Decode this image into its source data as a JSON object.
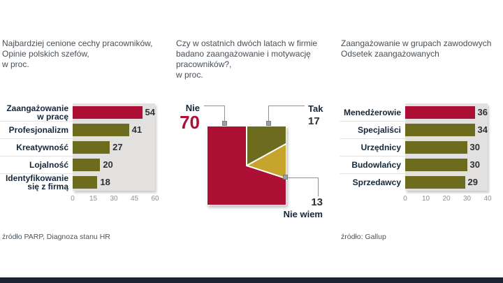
{
  "colors": {
    "red": "#ae1035",
    "olive": "#6d6b1d",
    "gold": "#c6a32b",
    "panel": "#e2e1e0",
    "label": "#14273a",
    "value": "#303030",
    "axis": "#8f8f8f",
    "header": "#474f57",
    "source": "#4c545c",
    "line": "#8d9297",
    "marker": "#9aa0a5",
    "footer_bar": "#1b2531"
  },
  "panels": {
    "left": {
      "title_lines": [
        "Najbardziej cenione cechy pracowników,",
        "Opinie polskich szefów,",
        "w proc."
      ],
      "max": 60,
      "ticks": [
        "0",
        "15",
        "30",
        "45",
        "60"
      ],
      "rows": [
        {
          "line1": "Zaangażowanie",
          "line2": "w pracę",
          "value": 54,
          "color": "#ae1035"
        },
        {
          "line1": "Profesjonalizm",
          "value": 41,
          "color": "#6d6b1d"
        },
        {
          "line1": "Kreatywność",
          "value": 27,
          "color": "#6d6b1d"
        },
        {
          "line1": "Lojalność",
          "value": 20,
          "color": "#6d6b1d"
        },
        {
          "line1": "Identyfikowanie",
          "line2": "się z firmą",
          "value": 18,
          "color": "#6d6b1d"
        }
      ],
      "source": "źródło PARP, Diagnoza stanu HR"
    },
    "middle": {
      "title_lines": [
        "Czy w ostatnich dwóch latach w firmie",
        "badano zaangażowanie i motywację",
        "pracowników?,",
        "w proc."
      ],
      "slices": [
        {
          "label": "Tak",
          "value": 17,
          "color": "#6d6b1d"
        },
        {
          "label": "Nie wiem",
          "value": 13,
          "color": "#c6a32b"
        },
        {
          "label": "Nie",
          "value": 70,
          "color": "#ae1035"
        }
      ],
      "labels": {
        "nie": "Nie",
        "nie_value": 70,
        "tak": "Tak",
        "tak_value": 17,
        "niewiem": "Nie wiem",
        "niewiem_value": 13
      }
    },
    "right": {
      "title_lines": [
        "Zaangażowanie w grupach zawodowych",
        "Odsetek zaangażowanych"
      ],
      "max": 40,
      "ticks": [
        "0",
        "10",
        "20",
        "30",
        "40"
      ],
      "rows": [
        {
          "line1": "Menedżerowie",
          "value": 36,
          "color": "#ae1035"
        },
        {
          "line1": "Specjaliści",
          "value": 34,
          "color": "#6d6b1d"
        },
        {
          "line1": "Urzędnicy",
          "value": 30,
          "color": "#6d6b1d"
        },
        {
          "line1": "Budowlańcy",
          "value": 30,
          "color": "#6d6b1d"
        },
        {
          "line1": "Sprzedawcy",
          "value": 29,
          "color": "#6d6b1d"
        }
      ],
      "source": "źródło: Gallup"
    }
  },
  "chart_data": [
    {
      "type": "bar",
      "orientation": "horizontal",
      "title": "Najbardziej cenione cechy pracowników, Opinie polskich szefów, w proc.",
      "categories": [
        "Zaangażowanie w pracę",
        "Profesjonalizm",
        "Kreatywność",
        "Lojalność",
        "Identyfikowanie się z firmą"
      ],
      "values": [
        54,
        41,
        27,
        20,
        18
      ],
      "xlim": [
        0,
        60
      ],
      "ticks": [
        0,
        15,
        30,
        45,
        60
      ],
      "bar_colors": [
        "#ae1035",
        "#6d6b1d",
        "#6d6b1d",
        "#6d6b1d",
        "#6d6b1d"
      ],
      "source": "źródło PARP, Diagnoza stanu HR"
    },
    {
      "type": "pie",
      "style": "square-pie",
      "title": "Czy w ostatnich dwóch latach w firmie badano zaangażowanie i motywację pracowników?, w proc.",
      "labels": [
        "Tak",
        "Nie wiem",
        "Nie"
      ],
      "values": [
        17,
        13,
        70
      ],
      "slice_colors": [
        "#6d6b1d",
        "#c6a32b",
        "#ae1035"
      ],
      "start_angle_deg": 0,
      "direction": "clockwise"
    },
    {
      "type": "bar",
      "orientation": "horizontal",
      "title": "Zaangażowanie w grupach zawodowych, Odsetek zaangażowanych",
      "categories": [
        "Menedżerowie",
        "Specjaliści",
        "Urzędnicy",
        "Budowlańcy",
        "Sprzedawcy"
      ],
      "values": [
        36,
        34,
        30,
        30,
        29
      ],
      "xlim": [
        0,
        40
      ],
      "ticks": [
        0,
        10,
        20,
        30,
        40
      ],
      "bar_colors": [
        "#ae1035",
        "#6d6b1d",
        "#6d6b1d",
        "#6d6b1d",
        "#6d6b1d"
      ],
      "source": "źródło: Gallup"
    }
  ]
}
